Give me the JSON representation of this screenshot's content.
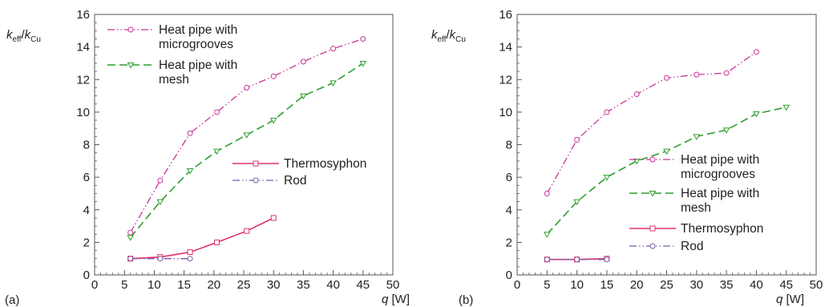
{
  "colors": {
    "microgrooves": "#cc3399",
    "mesh": "#2e9e2e",
    "thermosyphon": "#e0306e",
    "rod": "#7a5aa8",
    "axis": "#555555"
  },
  "chart_data": [
    {
      "type": "line",
      "panel_label": "(a)",
      "ylabel": {
        "main": "k",
        "sub1": "eff",
        "slash": "/",
        "main2": "k",
        "sub2": "Cu"
      },
      "xlabel": {
        "var": "q",
        "unit": " [W]"
      },
      "xlim": [
        0,
        50
      ],
      "ylim": [
        0,
        16
      ],
      "xticks": [
        0,
        5,
        10,
        15,
        20,
        25,
        30,
        35,
        40,
        45,
        50
      ],
      "yticks": [
        0,
        2,
        4,
        6,
        8,
        10,
        12,
        14,
        16
      ],
      "grid": false,
      "legend_groups": [
        {
          "placement": "top-left",
          "series": [
            0,
            1
          ]
        },
        {
          "placement": "center-right",
          "series": [
            2,
            3
          ]
        }
      ],
      "series": [
        {
          "name": "Heat pipe with microgrooves",
          "legend_lines": [
            "Heat pipe with",
            "microgrooves"
          ],
          "style": "microgrooves",
          "marker": "circle",
          "x": [
            6,
            11,
            16,
            20.5,
            25.5,
            30,
            35,
            40,
            45
          ],
          "y": [
            2.6,
            5.8,
            8.7,
            10.0,
            11.5,
            12.2,
            13.1,
            13.9,
            14.5
          ]
        },
        {
          "name": "Heat pipe with mesh",
          "legend_lines": [
            "Heat pipe with",
            "mesh"
          ],
          "style": "mesh",
          "marker": "triangle",
          "x": [
            6,
            11,
            16,
            20.5,
            25.5,
            30,
            35,
            40,
            45
          ],
          "y": [
            2.3,
            4.5,
            6.4,
            7.6,
            8.6,
            9.5,
            11.0,
            11.8,
            13.0
          ]
        },
        {
          "name": "Thermosyphon",
          "legend_lines": [
            "Thermosyphon"
          ],
          "style": "thermosyphon",
          "marker": "square",
          "x": [
            6,
            11,
            16,
            20.5,
            25.5,
            30
          ],
          "y": [
            1.0,
            1.1,
            1.4,
            2.0,
            2.7,
            3.5
          ]
        },
        {
          "name": "Rod",
          "legend_lines": [
            "Rod"
          ],
          "style": "rod",
          "marker": "circle",
          "x": [
            6,
            11,
            16
          ],
          "y": [
            1.0,
            1.0,
            1.0
          ]
        }
      ]
    },
    {
      "type": "line",
      "panel_label": "(b)",
      "ylabel": {
        "main": "k",
        "sub1": "eff",
        "slash": "/",
        "main2": "k",
        "sub2": "Cu"
      },
      "xlabel": {
        "var": "q",
        "unit": " [W]"
      },
      "xlim": [
        0,
        50
      ],
      "ylim": [
        0,
        16
      ],
      "xticks": [
        0,
        5,
        10,
        15,
        20,
        25,
        30,
        35,
        40,
        45,
        50
      ],
      "yticks": [
        0,
        2,
        4,
        6,
        8,
        10,
        12,
        14,
        16
      ],
      "grid": false,
      "legend_groups": [
        {
          "placement": "lower-right",
          "series": [
            0,
            1,
            2,
            3
          ]
        }
      ],
      "series": [
        {
          "name": "Heat pipe with microgrooves",
          "legend_lines": [
            "Heat pipe with",
            "microgrooves"
          ],
          "style": "microgrooves",
          "marker": "circle",
          "x": [
            5,
            10,
            15,
            20,
            25,
            30,
            35,
            40
          ],
          "y": [
            5.0,
            8.3,
            10.0,
            11.1,
            12.1,
            12.3,
            12.4,
            13.7
          ]
        },
        {
          "name": "Heat pipe with mesh",
          "legend_lines": [
            "Heat pipe with",
            "mesh"
          ],
          "style": "mesh",
          "marker": "triangle",
          "x": [
            5,
            10,
            15,
            20,
            25,
            30,
            35,
            40,
            45
          ],
          "y": [
            2.5,
            4.5,
            6.0,
            7.0,
            7.6,
            8.5,
            8.9,
            9.9,
            10.3
          ]
        },
        {
          "name": "Thermosyphon",
          "legend_lines": [
            "Thermosyphon"
          ],
          "style": "thermosyphon",
          "marker": "square",
          "x": [
            5,
            10,
            15
          ],
          "y": [
            0.95,
            0.95,
            1.0
          ]
        },
        {
          "name": "Rod",
          "legend_lines": [
            "Rod"
          ],
          "style": "rod",
          "marker": "circle",
          "x": [
            5,
            10,
            15
          ],
          "y": [
            0.95,
            0.95,
            0.95
          ]
        }
      ]
    }
  ]
}
